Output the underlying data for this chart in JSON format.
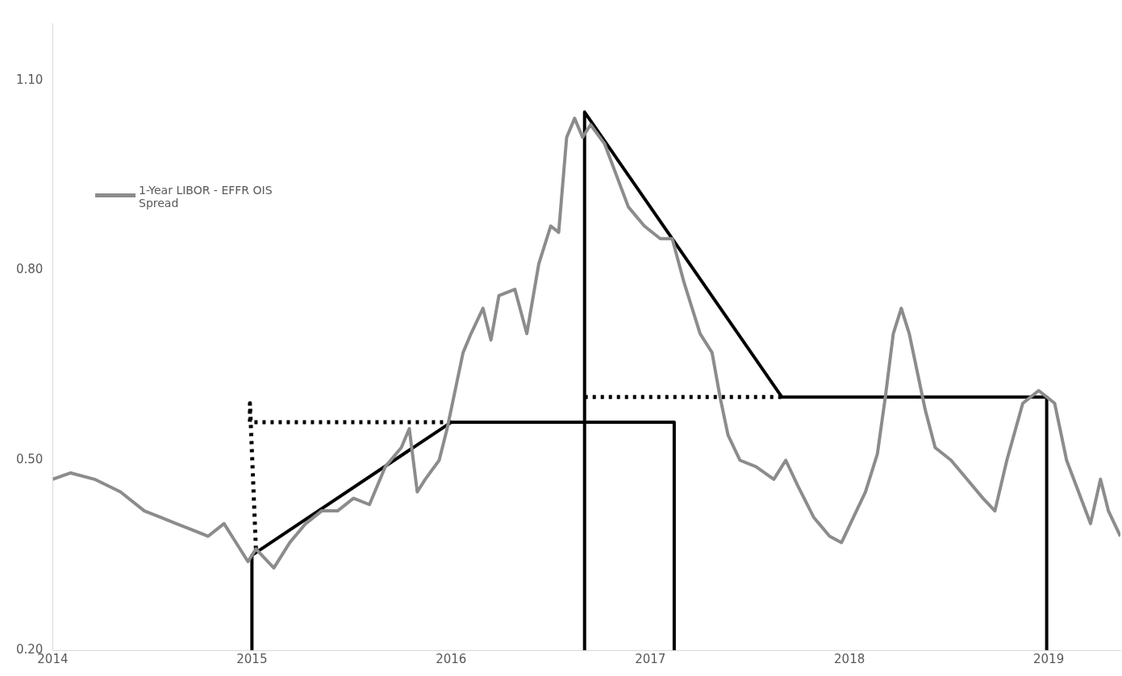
{
  "chart_data": {
    "type": "line",
    "xlim": [
      2014,
      2019.36
    ],
    "xticks": [
      2014,
      2015,
      2016,
      2017,
      2018,
      2019
    ],
    "ylim": [
      0.2,
      1.19
    ],
    "yticks": [
      {
        "value": 0.2,
        "label": "0.20"
      },
      {
        "value": 0.5,
        "label": "0.50"
      },
      {
        "value": 0.8,
        "label": "0.80"
      },
      {
        "value": 1.1,
        "label": "1.10"
      }
    ],
    "grid": false,
    "legend": "top left",
    "marker": "none",
    "series": [
      {
        "name": "1-Year LIBOR - EFFR OIS Spread",
        "color": "#8c8c8c",
        "line_style": "solid",
        "x": [
          2014.0,
          2014.09,
          2014.21,
          2014.34,
          2014.46,
          2014.54,
          2014.62,
          2014.7,
          2014.78,
          2014.86,
          2014.94,
          2014.98,
          2015.02,
          2015.11,
          2015.19,
          2015.27,
          2015.35,
          2015.43,
          2015.51,
          2015.59,
          2015.67,
          2015.75,
          2015.79,
          2015.83,
          2015.87,
          2015.94,
          2015.98,
          2016.02,
          2016.06,
          2016.1,
          2016.16,
          2016.2,
          2016.24,
          2016.32,
          2016.38,
          2016.44,
          2016.5,
          2016.54,
          2016.58,
          2016.62,
          2016.66,
          2016.7,
          2016.77,
          2016.83,
          2016.89,
          2016.97,
          2017.05,
          2017.11,
          2017.17,
          2017.21,
          2017.25,
          2017.31,
          2017.35,
          2017.39,
          2017.45,
          2017.53,
          2017.62,
          2017.68,
          2017.74,
          2017.82,
          2017.9,
          2017.96,
          2018.02,
          2018.08,
          2018.14,
          2018.18,
          2018.22,
          2018.26,
          2018.3,
          2018.34,
          2018.38,
          2018.43,
          2018.51,
          2018.59,
          2018.67,
          2018.73,
          2018.79,
          2018.87,
          2018.95,
          2019.03,
          2019.09,
          2019.15,
          2019.21,
          2019.26,
          2019.3,
          2019.36
        ],
        "values": [
          0.47,
          0.48,
          0.47,
          0.45,
          0.42,
          0.41,
          0.4,
          0.39,
          0.38,
          0.4,
          0.36,
          0.34,
          0.36,
          0.33,
          0.37,
          0.4,
          0.42,
          0.42,
          0.44,
          0.43,
          0.49,
          0.52,
          0.55,
          0.45,
          0.47,
          0.5,
          0.55,
          0.61,
          0.67,
          0.7,
          0.74,
          0.69,
          0.76,
          0.77,
          0.7,
          0.81,
          0.87,
          0.86,
          1.01,
          1.04,
          1.01,
          1.03,
          1.0,
          0.95,
          0.9,
          0.87,
          0.85,
          0.85,
          0.78,
          0.74,
          0.7,
          0.67,
          0.6,
          0.54,
          0.5,
          0.49,
          0.47,
          0.5,
          0.46,
          0.41,
          0.38,
          0.37,
          0.41,
          0.45,
          0.51,
          0.6,
          0.7,
          0.74,
          0.7,
          0.64,
          0.58,
          0.52,
          0.5,
          0.47,
          0.44,
          0.42,
          0.5,
          0.59,
          0.61,
          0.59,
          0.5,
          0.45,
          0.4,
          0.47,
          0.42,
          0.38
        ]
      },
      {
        "color": "#000000",
        "line_style": "solid",
        "x": [
          2015,
          2015,
          2016,
          2017.12,
          2017.12
        ],
        "values": [
          0.2,
          0.35,
          0.56,
          0.56,
          0.2
        ]
      },
      {
        "color": "#000000",
        "line_style": "solid",
        "x": [
          2016.67,
          2016.67,
          2017.66,
          2018.99,
          2018.99
        ],
        "values": [
          0.2,
          1.05,
          0.6,
          0.6,
          0.2
        ]
      },
      {
        "color": "#000000",
        "line_style": "dotted",
        "x": [
          2015.02,
          2014.99,
          2014.99,
          2016
        ],
        "values": [
          0.36,
          0.59,
          0.56,
          0.56
        ]
      },
      {
        "color": "#000000",
        "line_style": "dotted",
        "x": [
          2016.67,
          2017.66
        ],
        "values": [
          0.6,
          0.6
        ]
      }
    ]
  }
}
